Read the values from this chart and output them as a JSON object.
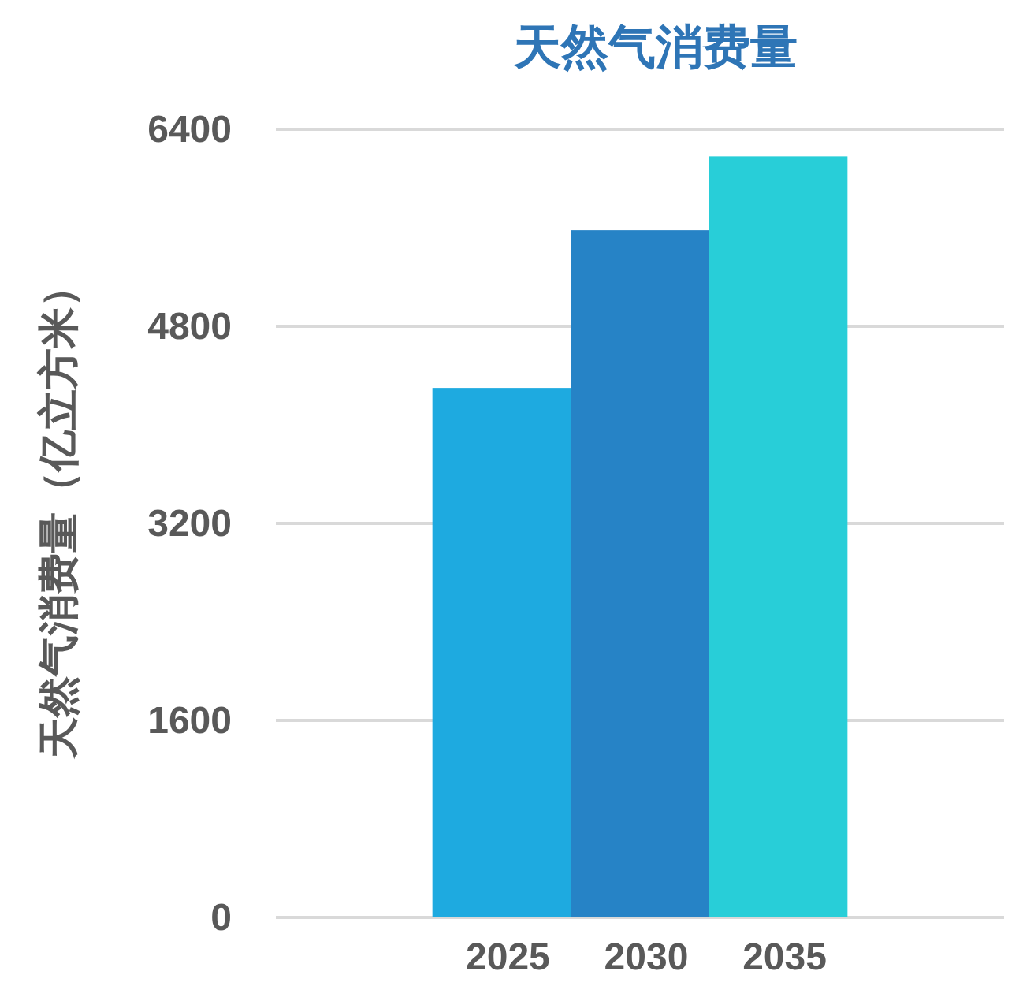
{
  "chart_data": {
    "type": "bar",
    "title": "天然气消费量",
    "ylabel": "天然气消费量（亿立方米）",
    "categories": [
      "2025",
      "2030",
      "2035"
    ],
    "values": [
      4300,
      5580,
      6180
    ],
    "colors": [
      "#1eaae0",
      "#2683c6",
      "#28ced8"
    ],
    "ylim": [
      0,
      6400
    ],
    "yticks": [
      0,
      1600,
      3200,
      4800,
      6400
    ],
    "grid": "y"
  }
}
